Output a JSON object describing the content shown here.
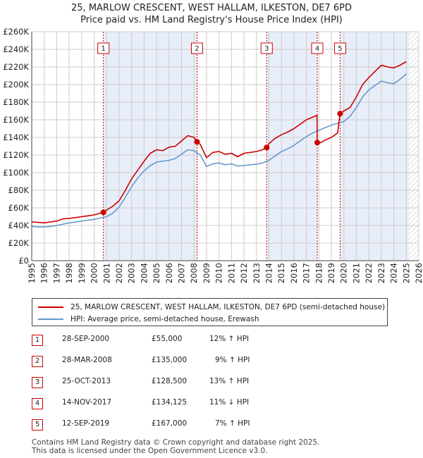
{
  "title_line1": "25, MARLOW CRESCENT, WEST HALLAM, ILKESTON, DE7 6PD",
  "title_line2": "Price paid vs. HM Land Registry's House Price Index (HPI)",
  "colors": {
    "property": "#cc0000",
    "hpi": "#6699cc",
    "shade": "#e8eef9",
    "grid": "#cccccc",
    "marker": "#cc0000"
  },
  "legend": {
    "property_label": "25, MARLOW CRESCENT, WEST HALLAM, ILKESTON, DE7 6PD (semi-detached house)",
    "hpi_label": "HPI: Average price, semi-detached house, Erewash"
  },
  "transactions": [
    {
      "num": "1",
      "date": "28-SEP-2000",
      "price": "£55,000",
      "hpi": "12% ↑ HPI"
    },
    {
      "num": "2",
      "date": "28-MAR-2008",
      "price": "£135,000",
      "hpi": "9% ↑ HPI"
    },
    {
      "num": "3",
      "date": "25-OCT-2013",
      "price": "£128,500",
      "hpi": "13% ↑ HPI"
    },
    {
      "num": "4",
      "date": "14-NOV-2017",
      "price": "£134,125",
      "hpi": "11% ↓ HPI"
    },
    {
      "num": "5",
      "date": "12-SEP-2019",
      "price": "£167,000",
      "hpi": "7% ↑ HPI"
    }
  ],
  "footer_line1": "Contains HM Land Registry data © Crown copyright and database right 2025.",
  "footer_line2": "This data is licensed under the Open Government Licence v3.0.",
  "chart_data": {
    "type": "line",
    "title": "25, MARLOW CRESCENT, WEST HALLAM, ILKESTON, DE7 6PD",
    "subtitle": "Price paid vs. HM Land Registry's House Price Index (HPI)",
    "xlabel": "",
    "ylabel": "",
    "xlim": [
      1995,
      2026
    ],
    "ylim": [
      0,
      260000
    ],
    "grid": true,
    "legend_position": "below",
    "x_ticks": [
      "1995",
      "1996",
      "1997",
      "1998",
      "1999",
      "2000",
      "2001",
      "2002",
      "2003",
      "2004",
      "2005",
      "2006",
      "2007",
      "2008",
      "2009",
      "2010",
      "2011",
      "2012",
      "2013",
      "2014",
      "2015",
      "2016",
      "2017",
      "2018",
      "2019",
      "2020",
      "2021",
      "2022",
      "2023",
      "2024",
      "2025",
      "2026"
    ],
    "y_ticks": [
      {
        "value": 0,
        "label": "£0"
      },
      {
        "value": 20000,
        "label": "£20K"
      },
      {
        "value": 40000,
        "label": "£40K"
      },
      {
        "value": 60000,
        "label": "£60K"
      },
      {
        "value": 80000,
        "label": "£80K"
      },
      {
        "value": 100000,
        "label": "£100K"
      },
      {
        "value": 120000,
        "label": "£120K"
      },
      {
        "value": 140000,
        "label": "£140K"
      },
      {
        "value": 160000,
        "label": "£160K"
      },
      {
        "value": 180000,
        "label": "£180K"
      },
      {
        "value": 200000,
        "label": "£200K"
      },
      {
        "value": 220000,
        "label": "£220K"
      },
      {
        "value": 240000,
        "label": "£240K"
      },
      {
        "value": 260000,
        "label": "£260K"
      }
    ],
    "shaded_ranges": [
      [
        2000.74,
        2008.24
      ],
      [
        2013.82,
        2017.87
      ],
      [
        2019.7,
        2025.2
      ]
    ],
    "future_hatch_from": 2025.2,
    "sales": [
      {
        "label": "1",
        "x": 2000.74,
        "y": 55000
      },
      {
        "label": "2",
        "x": 2008.24,
        "y": 135000
      },
      {
        "label": "3",
        "x": 2013.82,
        "y": 128500
      },
      {
        "label": "4",
        "x": 2017.87,
        "y": 134125
      },
      {
        "label": "5",
        "x": 2019.7,
        "y": 167000
      }
    ],
    "series": [
      {
        "name": "25, MARLOW CRESCENT, WEST HALLAM, ILKESTON, DE7 6PD (semi-detached house)",
        "x": [
          1995,
          1995.5,
          1996,
          1996.5,
          1997,
          1997.5,
          1998,
          1998.5,
          1999,
          1999.5,
          2000,
          2000.5,
          2000.74,
          2001,
          2001.5,
          2002,
          2002.5,
          2003,
          2003.5,
          2004,
          2004.5,
          2005,
          2005.5,
          2006,
          2006.5,
          2007,
          2007.5,
          2008,
          2008.24,
          2008.5,
          2009,
          2009.5,
          2010,
          2010.5,
          2011,
          2011.5,
          2012,
          2012.5,
          2013,
          2013.5,
          2013.82,
          2014,
          2014.5,
          2015,
          2015.5,
          2016,
          2016.5,
          2017,
          2017.5,
          2017.85,
          2017.87,
          2018,
          2018.5,
          2019,
          2019.5,
          2019.7,
          2020,
          2020.5,
          2021,
          2021.5,
          2022,
          2022.5,
          2023,
          2023.5,
          2024,
          2024.5,
          2025
        ],
        "values": [
          44000,
          43500,
          43000,
          44000,
          45000,
          47500,
          48000,
          49000,
          50000,
          51000,
          52000,
          54000,
          55000,
          57500,
          62000,
          68000,
          80000,
          93000,
          103000,
          113000,
          122000,
          126000,
          125000,
          129000,
          130000,
          136000,
          142000,
          140000,
          135000,
          132000,
          117000,
          123000,
          124000,
          121000,
          122000,
          118000,
          122000,
          123000,
          124000,
          126000,
          128500,
          133000,
          139000,
          143000,
          146000,
          150000,
          155000,
          160000,
          163000,
          165000,
          134125,
          133000,
          137000,
          140000,
          145000,
          167000,
          170000,
          174000,
          186000,
          200000,
          208000,
          215000,
          222000,
          220000,
          219000,
          222000,
          226000
        ]
      },
      {
        "name": "HPI: Average price, semi-detached house, Erewash",
        "x": [
          1995,
          1995.5,
          1996,
          1996.5,
          1997,
          1997.5,
          1998,
          1998.5,
          1999,
          1999.5,
          2000,
          2000.5,
          2001,
          2001.5,
          2002,
          2002.5,
          2003,
          2003.5,
          2004,
          2004.5,
          2005,
          2005.5,
          2006,
          2006.5,
          2007,
          2007.5,
          2008,
          2008.5,
          2009,
          2009.5,
          2010,
          2010.5,
          2011,
          2011.5,
          2012,
          2012.5,
          2013,
          2013.5,
          2014,
          2014.5,
          2015,
          2015.5,
          2016,
          2016.5,
          2017,
          2017.5,
          2018,
          2018.5,
          2019,
          2019.5,
          2020,
          2020.5,
          2021,
          2021.5,
          2022,
          2022.5,
          2023,
          2023.5,
          2024,
          2024.5,
          2025
        ],
        "values": [
          39000,
          38500,
          38500,
          39000,
          40000,
          41500,
          43000,
          44000,
          45000,
          46000,
          47000,
          48500,
          50000,
          54000,
          61000,
          72000,
          84000,
          94000,
          102000,
          108000,
          112000,
          113000,
          114000,
          116000,
          121000,
          126000,
          125000,
          120000,
          107000,
          110000,
          111000,
          109000,
          110000,
          107500,
          108000,
          109000,
          109500,
          111000,
          114000,
          119000,
          124000,
          127000,
          131000,
          136000,
          141000,
          145000,
          148000,
          151000,
          154000,
          156000,
          158000,
          164000,
          174000,
          186000,
          194000,
          199000,
          204000,
          202000,
          201000,
          206000,
          212000
        ]
      }
    ]
  }
}
